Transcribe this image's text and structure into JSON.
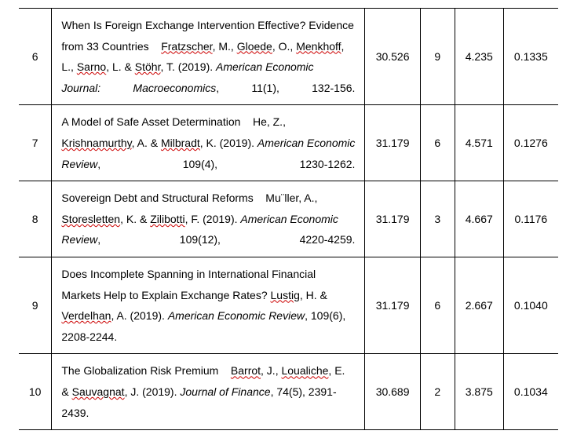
{
  "rows": [
    {
      "num": "6",
      "title": "When Is Foreign Exchange Intervention Effective? Evidence from 33 Countries",
      "authors_plain": "Fratzscher, M., Gloede, O., Menkhoff, L., Sarno, L. & Stöhr, T. (2019).",
      "journal": "American Economic Journal: Macroeconomics",
      "ref_tail": ", 11(1), 132-156.",
      "v1": "30.526",
      "v2": "9",
      "v3": "4.235",
      "v4": "0.1335"
    },
    {
      "num": "7",
      "title": "A Model of Safe Asset Determination",
      "authors_plain": "He, Z., Krishnamurthy, A. & Milbradt, K. (2019).",
      "journal": "American Economic Review",
      "ref_tail": ", 109(4), 1230-1262.",
      "v1": "31.179",
      "v2": "6",
      "v3": "4.571",
      "v4": "0.1276"
    },
    {
      "num": "8",
      "title": "Sovereign Debt and Structural Reforms",
      "authors_plain": "Mu¨ller, A., Storesletten, K. & Zilibotti, F. (2019).",
      "journal": "American Economic Review",
      "ref_tail": ", 109(12), 4220-4259.",
      "v1": "31.179",
      "v2": "3",
      "v3": "4.667",
      "v4": "0.1176"
    },
    {
      "num": "9",
      "title": "Does Incomplete Spanning in International Financial Markets Help to Explain Exchange Rates?",
      "authors_plain": "Lustig, H. & Verdelhan, A. (2019).",
      "journal": "American Economic Review",
      "ref_tail": ", 109(6), 2208-2244.",
      "v1": "31.179",
      "v2": "6",
      "v3": "2.667",
      "v4": "0.1040"
    },
    {
      "num": "10",
      "title": "The Globalization Risk Premium",
      "authors_plain": "Barrot, J., Loualiche, E. & Sauvagnat, J. (2019).",
      "journal": "Journal of Finance",
      "ref_tail": ", 74(5), 2391-2439.",
      "v1": "30.689",
      "v2": "2",
      "v3": "3.875",
      "v4": "0.1034"
    }
  ],
  "wavy_words": [
    "Fratzscher",
    "Gloede",
    "Menkhoff",
    "Sarno",
    "Stöhr",
    "Krishnamurthy",
    "Milbradt",
    "ller",
    "Storesletten",
    "Zilibotti",
    "Lustig",
    "Verdelhan",
    "Barrot",
    "Loualiche",
    "Sauvagnat"
  ]
}
